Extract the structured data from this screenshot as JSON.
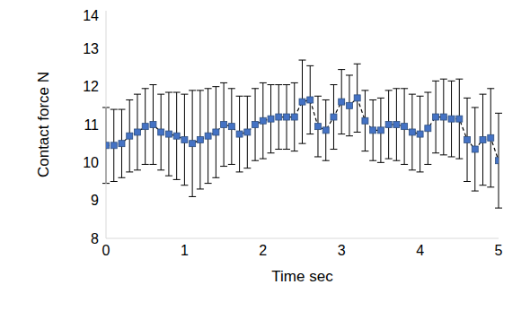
{
  "chart_data": {
    "type": "line",
    "x_label": "Time sec",
    "y_label": "Contact force N",
    "x": [
      0,
      0.1,
      0.2,
      0.3,
      0.4,
      0.5,
      0.6,
      0.7,
      0.8,
      0.9,
      1,
      1.1,
      1.2,
      1.3,
      1.4,
      1.5,
      1.6,
      1.7,
      1.8,
      1.9,
      2,
      2.1,
      2.2,
      2.3,
      2.4,
      2.5,
      2.6,
      2.7,
      2.8,
      2.9,
      3,
      3.1,
      3.2,
      3.3,
      3.4,
      3.5,
      3.6,
      3.7,
      3.8,
      3.9,
      4,
      4.1,
      4.2,
      4.3,
      4.4,
      4.5,
      4.6,
      4.7,
      4.8,
      4.9,
      5
    ],
    "values": [
      10.45,
      10.45,
      10.5,
      10.7,
      10.8,
      10.95,
      11.0,
      10.8,
      10.75,
      10.7,
      10.6,
      10.5,
      10.6,
      10.7,
      10.8,
      11.0,
      10.95,
      10.75,
      10.8,
      11.0,
      11.1,
      11.15,
      11.2,
      11.2,
      11.2,
      11.6,
      11.65,
      10.95,
      10.85,
      11.2,
      11.6,
      11.5,
      11.7,
      11.1,
      10.85,
      10.85,
      11.0,
      11.0,
      10.95,
      10.8,
      10.75,
      10.9,
      11.2,
      11.2,
      11.15,
      11.15,
      10.6,
      10.35,
      10.6,
      10.65,
      10.05
    ],
    "errors": [
      1.0,
      0.95,
      0.9,
      0.95,
      1.0,
      1.0,
      1.05,
      1.0,
      1.1,
      1.15,
      1.2,
      1.4,
      1.3,
      1.25,
      1.2,
      1.1,
      1.0,
      1.0,
      0.95,
      0.95,
      1.0,
      0.9,
      0.85,
      0.85,
      0.9,
      1.1,
      0.9,
      0.8,
      0.8,
      0.85,
      0.85,
      0.8,
      0.9,
      0.8,
      0.8,
      0.85,
      0.9,
      0.95,
      1.0,
      1.0,
      1.0,
      0.95,
      0.95,
      1.0,
      1.0,
      1.05,
      1.1,
      1.1,
      1.2,
      1.3,
      1.25
    ],
    "color": "#4472c4",
    "marker": "square",
    "line_style": "dashed",
    "xlim": [
      0,
      5
    ],
    "xticks": [
      0,
      1,
      2,
      3,
      4,
      5
    ],
    "ylim": [
      8,
      14
    ],
    "yticks": [
      8,
      9,
      10,
      11,
      12,
      13,
      14
    ],
    "grid": false
  }
}
